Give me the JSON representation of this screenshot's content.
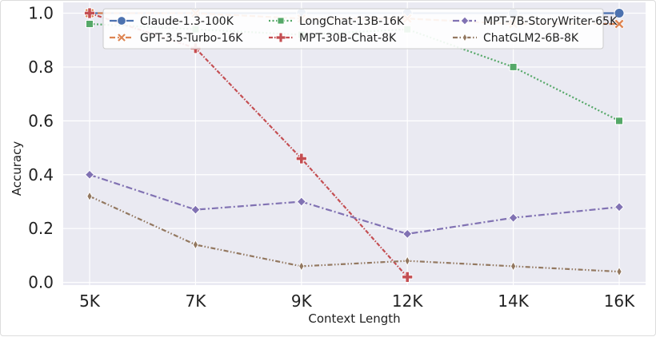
{
  "chart_data": {
    "type": "line",
    "title": "",
    "xlabel": "Context Length",
    "ylabel": "Accuracy",
    "categories": [
      "5K",
      "7K",
      "9K",
      "12K",
      "14K",
      "16K"
    ],
    "yticks": [
      "0.0",
      "0.2",
      "0.4",
      "0.6",
      "0.8",
      "1.0"
    ],
    "ylim": [
      -0.01,
      1.04
    ],
    "grid": true,
    "legend_position": "top",
    "series": [
      {
        "name": "Claude-1.3-100K",
        "color": "#4c72b0",
        "marker": "circle",
        "dash": "solid",
        "values": [
          1.0,
          1.0,
          1.0,
          1.0,
          1.0,
          1.0
        ]
      },
      {
        "name": "GPT-3.5-Turbo-16K",
        "color": "#dd8452",
        "marker": "x",
        "dash": "dashed",
        "values": [
          1.0,
          1.0,
          0.98,
          0.98,
          0.96,
          0.96
        ]
      },
      {
        "name": "LongChat-13B-16K",
        "color": "#55a868",
        "marker": "square",
        "dash": "dotted",
        "values": [
          0.96,
          0.94,
          0.92,
          0.94,
          0.8,
          0.6
        ]
      },
      {
        "name": "MPT-30B-Chat-8K",
        "color": "#c44e52",
        "marker": "plus",
        "dash": "dashdot-dense",
        "values": [
          1.0,
          0.87,
          0.46,
          0.02,
          null,
          null
        ]
      },
      {
        "name": "MPT-7B-StoryWriter-65K",
        "color": "#8172b3",
        "marker": "diamond",
        "dash": "dashdot",
        "values": [
          0.4,
          0.27,
          0.3,
          0.18,
          0.24,
          0.28
        ]
      },
      {
        "name": "ChatGLM2-6B-8K",
        "color": "#937860",
        "marker": "thin-diamond",
        "dash": "dashdotdot",
        "values": [
          0.32,
          0.14,
          0.06,
          0.08,
          0.06,
          0.04
        ]
      }
    ]
  }
}
